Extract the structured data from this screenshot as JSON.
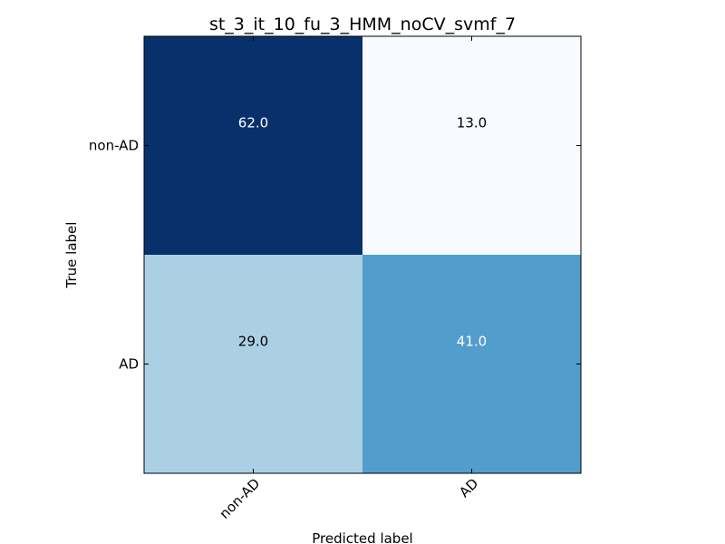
{
  "chart_data": {
    "type": "heatmap",
    "title": "st_3_it_10_fu_3_HMM_noCV_svmf_7",
    "xlabel": "Predicted label",
    "ylabel": "True label",
    "x_categories": [
      "non-AD",
      "AD"
    ],
    "y_categories": [
      "non-AD",
      "AD"
    ],
    "values": [
      [
        62.0,
        13.0
      ],
      [
        29.0,
        41.0
      ]
    ],
    "cell_labels": [
      [
        "62.0",
        "13.0"
      ],
      [
        "29.0",
        "41.0"
      ]
    ],
    "colormap": "Blues",
    "colors": {
      "cells": [
        [
          "#08306b",
          "#f7fbff"
        ],
        [
          "#abd0e6",
          "#529dcc"
        ]
      ],
      "label_text": [
        [
          "#ffffff",
          "#000000"
        ],
        [
          "#000000",
          "#ffffff"
        ]
      ],
      "frame": "#000000"
    },
    "x_tick_rotation_deg": 45
  }
}
